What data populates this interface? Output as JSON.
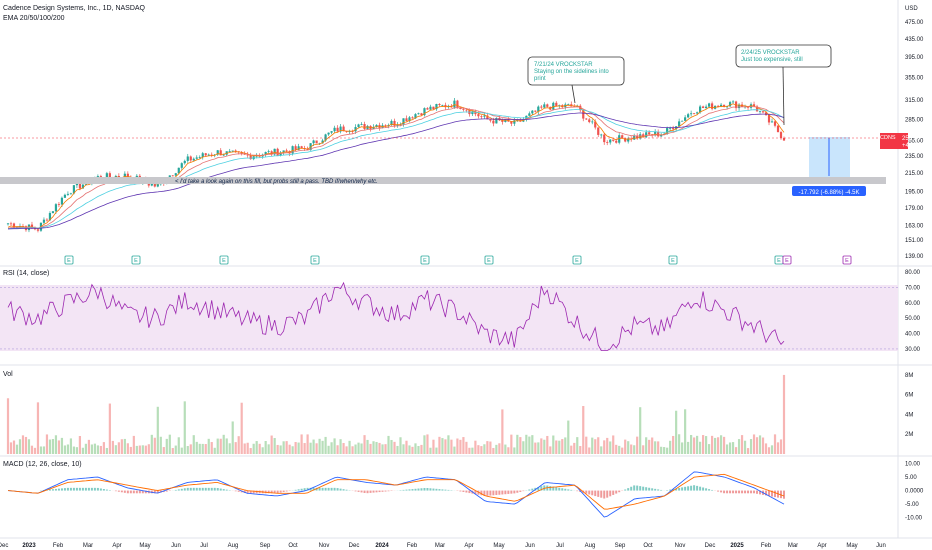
{
  "header": {
    "symbol_line": "Cadence Design Systems, Inc., 1D, NASDAQ",
    "ema_line": "EMA 20/50/100/200",
    "currency": "USD"
  },
  "price_axis": {
    "ticks": [
      "475.00",
      "435.00",
      "395.00",
      "355.00",
      "315.00",
      "285.00",
      "255.00",
      "235.00",
      "215.00",
      "195.00",
      "179.00",
      "163.00",
      "151.00",
      "139.00"
    ],
    "tick_values": [
      475,
      435,
      395,
      355,
      315,
      285,
      255,
      235,
      215,
      195,
      179,
      163,
      151,
      139
    ],
    "scale": "log"
  },
  "last_price": {
    "ticker": "CDNS",
    "price": "258.34",
    "change": "+47.84%",
    "color": "#f23645"
  },
  "annotations": [
    {
      "date": "7/21/24 VROCKSTAR",
      "lines": [
        "Staying on the sidelines into",
        "print"
      ]
    },
    {
      "date": "2/24/25 VROCKSTAR",
      "lines": [
        "Just too expensive, still"
      ]
    }
  ],
  "zone_text": "< I'd take a look again on this fill, but probs still a pass. TBD if/when/why etc.",
  "measure_label": "-17.792 (-6.88%) -4.5K",
  "earnings_marker": "E",
  "rsi": {
    "title": "RSI (14, close)",
    "ticks": [
      "80.00",
      "70.00",
      "60.00",
      "50.00",
      "40.00",
      "30.00"
    ],
    "upper": 70,
    "lower": 30
  },
  "volume": {
    "title": "Vol",
    "ticks": [
      "8M",
      "6M",
      "4M",
      "2M"
    ]
  },
  "macd": {
    "title": "MACD (12, 26, close, 10)",
    "ticks": [
      "10.00",
      "5.00",
      "0.0000",
      "-5.00",
      "-10.00"
    ]
  },
  "time_axis": [
    "Dec",
    "2023",
    "Feb",
    "Mar",
    "Apr",
    "May",
    "Jun",
    "Jul",
    "Aug",
    "Sep",
    "Oct",
    "Nov",
    "Dec",
    "2024",
    "Feb",
    "Mar",
    "Apr",
    "May",
    "Jun",
    "Jul",
    "Aug",
    "Sep",
    "Oct",
    "Nov",
    "Dec",
    "2025",
    "Feb",
    "Mar",
    "Apr",
    "May",
    "Jun"
  ],
  "colors": {
    "up": "#26a69a",
    "down": "#ef5350",
    "rsi": "#9c27b0",
    "macd": "#2962ff",
    "signal": "#ff6d00",
    "ema20": "#f57c00",
    "ema50": "#e57373",
    "ema100": "#4dd0e1",
    "ema200": "#5e35b1"
  },
  "chart_data": {
    "type": "line",
    "series": [
      {
        "x": [
          "2022-12",
          "2023-01",
          "2023-02",
          "2023-03",
          "2023-04",
          "2023-05",
          "2023-06",
          "2023-07",
          "2023-08",
          "2023-09",
          "2023-10",
          "2023-11",
          "2023-12",
          "2024-01",
          "2024-02",
          "2024-03",
          "2024-04",
          "2024-05",
          "2024-06",
          "2024-07",
          "2024-08",
          "2024-09",
          "2024-10",
          "2024-11",
          "2024-12",
          "2025-01",
          "2025-02"
        ],
        "values": [
          165,
          160,
          195,
          210,
          212,
          200,
          230,
          240,
          235,
          240,
          245,
          270,
          275,
          280,
          300,
          310,
          285,
          278,
          305,
          305,
          255,
          260,
          265,
          300,
          310,
          305,
          258
        ]
      }
    ],
    "ylim": [
      139,
      475
    ],
    "rsi_values": [
      55,
      50,
      60,
      68,
      52,
      50,
      62,
      55,
      48,
      45,
      50,
      70,
      60,
      52,
      62,
      55,
      40,
      35,
      70,
      48,
      32,
      45,
      42,
      65,
      55,
      45,
      32
    ],
    "macd_values": [
      0,
      -1,
      4,
      5,
      1,
      -1,
      3,
      4,
      -1,
      -2,
      0,
      5,
      3,
      2,
      5,
      4,
      -4,
      -5,
      3,
      2,
      -10,
      -3,
      -2,
      7,
      5,
      1,
      -5
    ],
    "signal_values": [
      0,
      -1,
      3,
      4,
      2,
      0,
      2,
      3,
      0,
      -1,
      -1,
      4,
      4,
      2,
      4,
      4,
      -2,
      -4,
      1,
      2,
      -7,
      -5,
      -2,
      5,
      6,
      2,
      -2
    ]
  }
}
